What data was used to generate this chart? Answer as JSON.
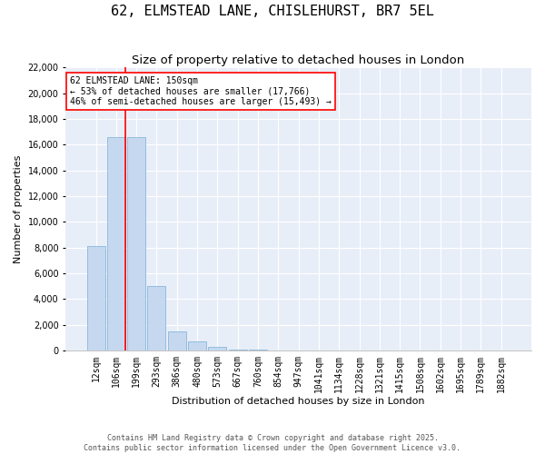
{
  "title": "62, ELMSTEAD LANE, CHISLEHURST, BR7 5EL",
  "subtitle": "Size of property relative to detached houses in London",
  "xlabel": "Distribution of detached houses by size in London",
  "ylabel": "Number of properties",
  "bar_color": "#c5d8f0",
  "bar_edge_color": "#7aaed6",
  "background_color": "#e8eef8",
  "categories": [
    "12sqm",
    "106sqm",
    "199sqm",
    "293sqm",
    "386sqm",
    "480sqm",
    "573sqm",
    "667sqm",
    "760sqm",
    "854sqm",
    "947sqm",
    "1041sqm",
    "1134sqm",
    "1228sqm",
    "1321sqm",
    "1415sqm",
    "1508sqm",
    "1602sqm",
    "1695sqm",
    "1789sqm",
    "1882sqm"
  ],
  "values": [
    8100,
    16600,
    16600,
    5000,
    1500,
    700,
    250,
    100,
    40,
    15,
    5,
    2,
    1,
    0,
    0,
    0,
    0,
    0,
    0,
    0,
    0
  ],
  "ylim": [
    0,
    22000
  ],
  "yticks": [
    0,
    2000,
    4000,
    6000,
    8000,
    10000,
    12000,
    14000,
    16000,
    18000,
    20000,
    22000
  ],
  "vline_x": 1.45,
  "annotation_text": "62 ELMSTEAD LANE: 150sqm\n← 53% of detached houses are smaller (17,766)\n46% of semi-detached houses are larger (15,493) →",
  "footer_line1": "Contains HM Land Registry data © Crown copyright and database right 2025.",
  "footer_line2": "Contains public sector information licensed under the Open Government Licence v3.0.",
  "title_fontsize": 11,
  "subtitle_fontsize": 9.5,
  "axis_label_fontsize": 8,
  "tick_fontsize": 7,
  "annot_fontsize": 7
}
